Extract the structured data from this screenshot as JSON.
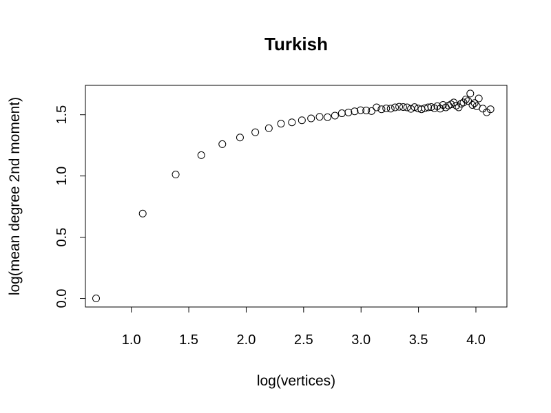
{
  "chart_data": {
    "type": "scatter",
    "title": "Turkish",
    "xlabel": "log(vertices)",
    "ylabel": "log(mean degree 2nd moment)",
    "xlim": [
      0.6,
      4.27
    ],
    "ylim": [
      -0.07,
      1.74
    ],
    "xticks": [
      1.0,
      1.5,
      2.0,
      2.5,
      3.0,
      3.5,
      4.0
    ],
    "xtick_labels": [
      "1.0",
      "1.5",
      "2.0",
      "2.5",
      "3.0",
      "3.5",
      "4.0"
    ],
    "yticks": [
      0.0,
      0.5,
      1.0,
      1.5
    ],
    "ytick_labels": [
      "0.0",
      "0.5",
      "1.0",
      "1.5"
    ],
    "grid": false,
    "legend": "none",
    "marker": "open-circle",
    "x": [
      0.693,
      1.099,
      1.386,
      1.609,
      1.792,
      1.946,
      2.079,
      2.197,
      2.303,
      2.398,
      2.485,
      2.565,
      2.639,
      2.708,
      2.773,
      2.833,
      2.89,
      2.944,
      2.996,
      3.045,
      3.091,
      3.135,
      3.178,
      3.219,
      3.258,
      3.296,
      3.332,
      3.367,
      3.401,
      3.434,
      3.466,
      3.497,
      3.526,
      3.555,
      3.584,
      3.611,
      3.638,
      3.664,
      3.689,
      3.714,
      3.738,
      3.761,
      3.784,
      3.807,
      3.829,
      3.85,
      3.871,
      3.892,
      3.912,
      3.932,
      3.951,
      3.97,
      3.989,
      4.007,
      4.025,
      4.06,
      4.094,
      4.127
    ],
    "y": [
      0.0,
      0.693,
      1.012,
      1.17,
      1.26,
      1.314,
      1.357,
      1.39,
      1.427,
      1.438,
      1.455,
      1.47,
      1.483,
      1.48,
      1.493,
      1.512,
      1.519,
      1.528,
      1.537,
      1.535,
      1.53,
      1.56,
      1.545,
      1.552,
      1.55,
      1.56,
      1.565,
      1.563,
      1.56,
      1.548,
      1.562,
      1.551,
      1.545,
      1.553,
      1.56,
      1.563,
      1.553,
      1.57,
      1.55,
      1.58,
      1.56,
      1.575,
      1.585,
      1.6,
      1.575,
      1.56,
      1.59,
      1.6,
      1.625,
      1.612,
      1.673,
      1.58,
      1.595,
      1.57,
      1.633,
      1.55,
      1.52,
      1.545
    ]
  }
}
